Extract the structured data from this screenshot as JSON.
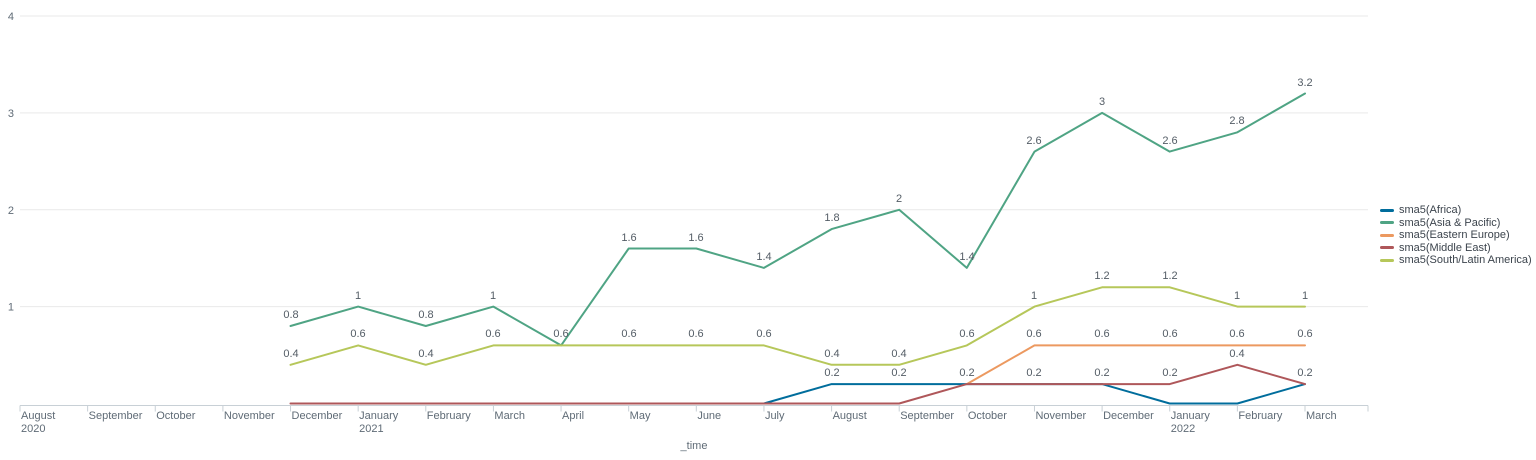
{
  "chart_data": {
    "type": "line",
    "title": "",
    "xlabel": "_time",
    "ylabel": "",
    "ylim": [
      0,
      4
    ],
    "yticks": [
      1,
      2,
      3,
      4
    ],
    "grid": "horizontal",
    "legend_position": "right",
    "show_value_labels": true,
    "x_categories": [
      {
        "label": "August",
        "sub": "2020"
      },
      {
        "label": "September"
      },
      {
        "label": "October"
      },
      {
        "label": "November"
      },
      {
        "label": "December"
      },
      {
        "label": "January",
        "sub": "2021"
      },
      {
        "label": "February"
      },
      {
        "label": "March"
      },
      {
        "label": "April"
      },
      {
        "label": "May"
      },
      {
        "label": "June"
      },
      {
        "label": "July"
      },
      {
        "label": "August"
      },
      {
        "label": "September"
      },
      {
        "label": "October"
      },
      {
        "label": "November"
      },
      {
        "label": "December"
      },
      {
        "label": "January",
        "sub": "2022"
      },
      {
        "label": "February"
      },
      {
        "label": "March"
      }
    ],
    "series": [
      {
        "name": "sma5(Africa)",
        "color": "#006d9c",
        "values": [
          null,
          null,
          null,
          null,
          null,
          null,
          null,
          null,
          null,
          null,
          null,
          0,
          0.2,
          0.2,
          0.2,
          0.2,
          0.2,
          0,
          0,
          0.2
        ]
      },
      {
        "name": "sma5(Asia & Pacific)",
        "color": "#4fa484",
        "values": [
          null,
          null,
          null,
          null,
          0.8,
          1,
          0.8,
          1,
          0.6,
          1.6,
          1.6,
          1.4,
          1.8,
          2,
          1.4,
          2.6,
          3,
          2.6,
          2.8,
          3.2
        ]
      },
      {
        "name": "sma5(Eastern Europe)",
        "color": "#ec9960",
        "values": [
          null,
          null,
          null,
          null,
          null,
          null,
          null,
          null,
          null,
          null,
          null,
          null,
          null,
          null,
          0.2,
          0.6,
          0.6,
          0.6,
          0.6,
          0.6
        ]
      },
      {
        "name": "sma5(Middle East)",
        "color": "#af575a",
        "values": [
          null,
          null,
          null,
          null,
          0,
          0,
          0,
          0,
          0,
          0,
          0,
          0,
          0,
          0,
          0.2,
          0.2,
          0.2,
          0.2,
          0.4,
          0.2
        ]
      },
      {
        "name": "sma5(South/Latin America)",
        "color": "#b6c75a",
        "values": [
          null,
          null,
          null,
          null,
          0.4,
          0.6,
          0.4,
          0.6,
          0.6,
          0.6,
          0.6,
          0.6,
          0.4,
          0.4,
          0.6,
          1,
          1.2,
          1.2,
          1,
          1
        ]
      }
    ]
  },
  "colors": {
    "background": "#ffffff",
    "gridline": "#e9e9e9",
    "axis_line": "#c8d0d6",
    "tick_text": "#5f6b76",
    "value_label_text": "#545d66",
    "legend_text": "#3c444d"
  }
}
